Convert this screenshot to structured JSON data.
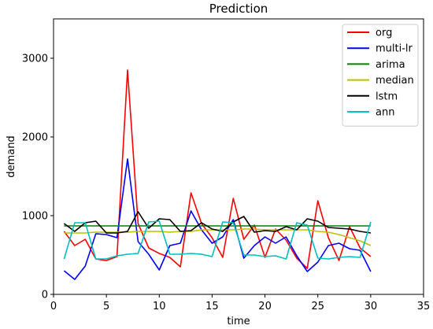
{
  "chart_data": {
    "type": "line",
    "title": "Prediction",
    "xlabel": "time",
    "ylabel": "demand",
    "xlim": [
      0,
      35
    ],
    "ylim": [
      0,
      3500
    ],
    "xticks": [
      0,
      5,
      10,
      15,
      20,
      25,
      30,
      35
    ],
    "yticks": [
      0,
      1000,
      2000,
      3000
    ],
    "grid": false,
    "legend_position": "top-right",
    "x": [
      1,
      2,
      3,
      4,
      5,
      6,
      7,
      8,
      9,
      10,
      11,
      12,
      13,
      14,
      15,
      16,
      17,
      18,
      19,
      20,
      21,
      22,
      23,
      24,
      25,
      26,
      27,
      28,
      29,
      30
    ],
    "series": [
      {
        "name": "org",
        "color": "#ff0000",
        "values": [
          800,
          620,
          700,
          450,
          430,
          480,
          2850,
          900,
          590,
          520,
          470,
          350,
          1290,
          900,
          720,
          470,
          1220,
          700,
          880,
          470,
          830,
          690,
          460,
          330,
          1190,
          720,
          430,
          860,
          590,
          480
        ]
      },
      {
        "name": "multi-lr",
        "color": "#0000ff",
        "values": [
          300,
          190,
          360,
          770,
          760,
          720,
          1720,
          670,
          510,
          310,
          620,
          650,
          1060,
          820,
          650,
          730,
          950,
          460,
          620,
          730,
          650,
          730,
          490,
          290,
          410,
          620,
          650,
          580,
          560,
          290
        ]
      },
      {
        "name": "arima",
        "color": "#008000",
        "values": [
          870,
          870,
          870,
          870,
          870,
          870,
          870,
          870,
          870,
          870,
          870,
          870,
          870,
          870,
          870,
          870,
          870,
          870,
          870,
          870,
          870,
          870,
          870,
          870,
          870,
          870,
          870,
          870,
          870,
          870
        ]
      },
      {
        "name": "median",
        "color": "#bfbf00",
        "values": [
          780,
          780,
          780,
          790,
          790,
          790,
          790,
          800,
          800,
          800,
          790,
          800,
          800,
          820,
          820,
          820,
          820,
          830,
          830,
          820,
          820,
          820,
          820,
          820,
          800,
          790,
          760,
          720,
          680,
          620
        ]
      },
      {
        "name": "lstm",
        "color": "#000000",
        "values": [
          900,
          800,
          910,
          930,
          780,
          780,
          800,
          1050,
          840,
          960,
          950,
          800,
          810,
          910,
          830,
          800,
          920,
          990,
          790,
          810,
          800,
          860,
          820,
          960,
          930,
          850,
          840,
          830,
          800,
          780
        ]
      },
      {
        "name": "ann",
        "color": "#00bfbf",
        "values": [
          450,
          910,
          910,
          450,
          450,
          490,
          510,
          520,
          920,
          930,
          510,
          510,
          520,
          510,
          480,
          920,
          910,
          500,
          500,
          480,
          490,
          450,
          910,
          880,
          460,
          450,
          470,
          480,
          470,
          920
        ]
      }
    ]
  }
}
